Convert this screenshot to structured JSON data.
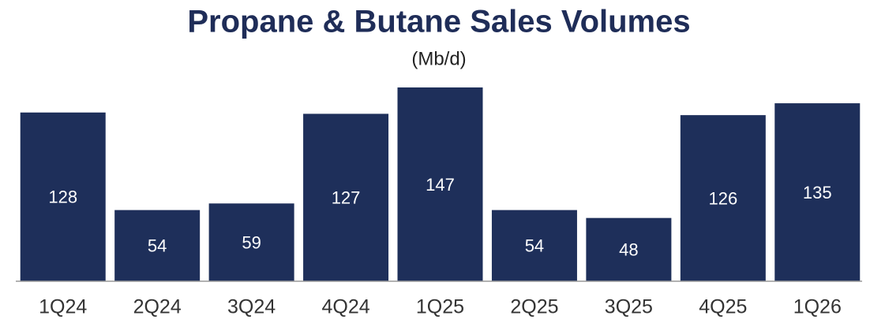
{
  "chart_data": {
    "type": "bar",
    "title": "Propane & Butane Sales Volumes",
    "subtitle": "(Mb/d)",
    "categories": [
      "1Q24",
      "2Q24",
      "3Q24",
      "4Q24",
      "1Q25",
      "2Q25",
      "3Q25",
      "4Q25",
      "1Q26"
    ],
    "values": [
      128,
      54,
      59,
      127,
      147,
      54,
      48,
      126,
      135
    ],
    "color": "#1e2f5a"
  }
}
